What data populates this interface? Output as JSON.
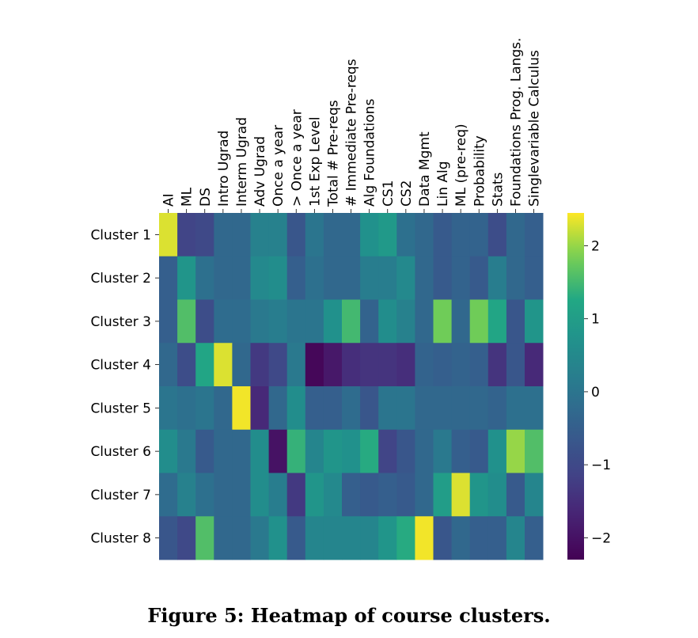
{
  "caption": "Figure 5: Heatmap of course clusters.",
  "chart_data": {
    "type": "heatmap",
    "columns": [
      "AI",
      "ML",
      "DS",
      "Intro Ugrad",
      "Interm Ugrad",
      "Adv Ugrad",
      "Once a year",
      "> Once a year",
      "1st Exp Level",
      "Total # Pre-reqs",
      "# Immediate Pre-reqs",
      "Alg Foundations",
      "CS1",
      "CS2",
      "Data Mgmt",
      "Lin Alg",
      "ML (pre-req)",
      "Probability",
      "Stats",
      "Foundations Prog. Langs.",
      "Singlevariable Calculus"
    ],
    "rows": [
      "Cluster 1",
      "Cluster 2",
      "Cluster 3",
      "Cluster 4",
      "Cluster 5",
      "Cluster 6",
      "Cluster 7",
      "Cluster 8"
    ],
    "values": [
      [
        2.3,
        -1.1,
        -1.0,
        -0.3,
        -0.3,
        0.3,
        0.3,
        -0.7,
        0.0,
        -0.3,
        -0.3,
        0.7,
        0.9,
        -0.1,
        -0.3,
        -0.6,
        -0.4,
        -0.4,
        -0.9,
        -0.3,
        -0.5
      ],
      [
        -0.5,
        0.8,
        -0.1,
        -0.3,
        -0.3,
        0.5,
        0.6,
        -0.5,
        -0.1,
        -0.3,
        -0.3,
        0.2,
        0.2,
        0.5,
        -0.3,
        -0.6,
        -0.4,
        -0.6,
        0.2,
        -0.3,
        -0.5
      ],
      [
        -0.5,
        1.6,
        -0.9,
        -0.2,
        -0.2,
        0.1,
        0.2,
        0.0,
        0.0,
        0.7,
        1.5,
        -0.4,
        0.6,
        0.3,
        -0.3,
        1.8,
        -0.3,
        1.8,
        1.2,
        -0.7,
        0.8
      ],
      [
        -0.3,
        -0.9,
        1.2,
        2.3,
        -0.3,
        -1.3,
        -1.0,
        0.1,
        -2.2,
        -1.9,
        -1.5,
        -1.4,
        -1.4,
        -1.5,
        -0.4,
        -0.5,
        -0.4,
        -0.5,
        -1.4,
        -0.7,
        -1.6
      ],
      [
        0.0,
        -0.1,
        0.0,
        -0.3,
        2.4,
        -1.6,
        -0.3,
        0.6,
        -0.5,
        -0.5,
        -0.2,
        -0.7,
        0.0,
        0.0,
        -0.3,
        -0.3,
        -0.3,
        -0.3,
        -0.4,
        -0.1,
        -0.1
      ],
      [
        0.6,
        0.1,
        -0.6,
        -0.3,
        -0.3,
        0.6,
        -2.0,
        1.4,
        0.4,
        0.8,
        0.7,
        1.3,
        -1.1,
        -0.7,
        -0.3,
        0.1,
        -0.5,
        -0.6,
        0.7,
        2.0,
        1.6
      ],
      [
        -0.2,
        0.3,
        -0.1,
        -0.3,
        -0.3,
        0.6,
        0.2,
        -1.3,
        0.8,
        0.5,
        -0.5,
        -0.6,
        -0.5,
        -0.6,
        -0.3,
        1.0,
        2.3,
        0.8,
        0.6,
        -0.6,
        0.4
      ],
      [
        -0.7,
        -1.0,
        1.6,
        -0.3,
        -0.3,
        0.1,
        0.7,
        -0.6,
        0.4,
        0.4,
        0.4,
        0.4,
        0.8,
        1.3,
        2.4,
        -0.7,
        -0.3,
        -0.5,
        -0.5,
        0.4,
        -0.5
      ]
    ],
    "colormap": "viridis",
    "vmin": -2.3,
    "vmax": 2.45,
    "colorbar_ticks": [
      2,
      1,
      0,
      -1,
      -2
    ],
    "colorbar_tick_labels": [
      "2",
      "1",
      "0",
      "−1",
      "−2"
    ],
    "legend_position": "right"
  }
}
